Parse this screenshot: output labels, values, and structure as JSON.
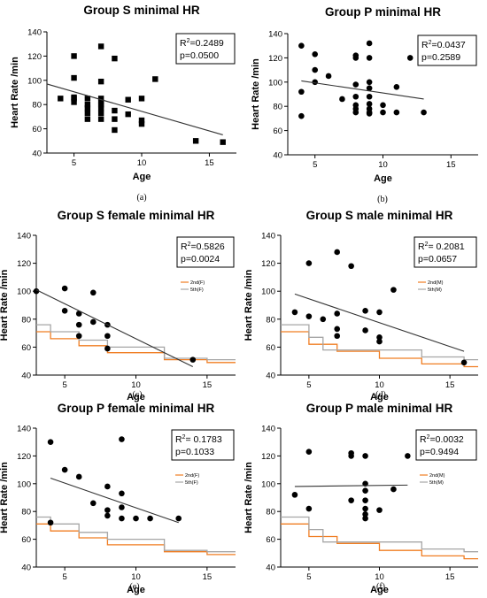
{
  "figure": {
    "colors": {
      "regression": "#333333",
      "points": "#000000",
      "ref_2nd": "#f07d22",
      "ref_5th": "#a6a6a6"
    }
  },
  "chart_data": [
    {
      "type": "scatter",
      "panel_label": "(a)",
      "title": "Group S minimal HR",
      "xlabel": "Age",
      "ylabel": "Heart Rate /min",
      "xlim": [
        3,
        17
      ],
      "ylim": [
        40,
        140
      ],
      "xticks": [
        5,
        10,
        15
      ],
      "yticks": [
        40,
        60,
        80,
        100,
        120,
        140
      ],
      "marker": "square",
      "stats": {
        "r2_label": "R",
        "r2_sup": "2",
        "r2_value": "=0.2489",
        "p_text": "p=0.0500"
      },
      "points": [
        {
          "x": 4,
          "y": 85
        },
        {
          "x": 5,
          "y": 120
        },
        {
          "x": 5,
          "y": 102
        },
        {
          "x": 5,
          "y": 86
        },
        {
          "x": 5,
          "y": 85
        },
        {
          "x": 5,
          "y": 82
        },
        {
          "x": 6,
          "y": 85
        },
        {
          "x": 6,
          "y": 80
        },
        {
          "x": 6,
          "y": 77
        },
        {
          "x": 6,
          "y": 73
        },
        {
          "x": 6,
          "y": 68
        },
        {
          "x": 7,
          "y": 128
        },
        {
          "x": 7,
          "y": 99
        },
        {
          "x": 7,
          "y": 85
        },
        {
          "x": 7,
          "y": 82
        },
        {
          "x": 7,
          "y": 80
        },
        {
          "x": 7,
          "y": 77
        },
        {
          "x": 7,
          "y": 73
        },
        {
          "x": 7,
          "y": 68
        },
        {
          "x": 8,
          "y": 118
        },
        {
          "x": 8,
          "y": 75
        },
        {
          "x": 8,
          "y": 68
        },
        {
          "x": 8,
          "y": 59
        },
        {
          "x": 9,
          "y": 84
        },
        {
          "x": 9,
          "y": 72
        },
        {
          "x": 10,
          "y": 85
        },
        {
          "x": 10,
          "y": 67
        },
        {
          "x": 10,
          "y": 64
        },
        {
          "x": 11,
          "y": 101
        },
        {
          "x": 14,
          "y": 50
        },
        {
          "x": 16,
          "y": 49
        }
      ],
      "regression": {
        "x": [
          3,
          16
        ],
        "y": [
          97,
          55
        ]
      }
    },
    {
      "type": "scatter",
      "panel_label": "(b)",
      "title": "Group P minimal HR",
      "xlabel": "Age",
      "ylabel": "Heart Rate /min",
      "xlim": [
        3,
        17
      ],
      "ylim": [
        40,
        140
      ],
      "xticks": [
        5,
        10,
        15
      ],
      "yticks": [
        40,
        60,
        80,
        100,
        120,
        140
      ],
      "marker": "circle",
      "stats": {
        "r2_label": "R",
        "r2_sup": "2",
        "r2_value": "=0.0437",
        "p_text": "p=0.2589"
      },
      "points": [
        {
          "x": 4,
          "y": 130
        },
        {
          "x": 4,
          "y": 92
        },
        {
          "x": 4,
          "y": 72
        },
        {
          "x": 5,
          "y": 123
        },
        {
          "x": 5,
          "y": 110
        },
        {
          "x": 5,
          "y": 100
        },
        {
          "x": 6,
          "y": 105
        },
        {
          "x": 7,
          "y": 86
        },
        {
          "x": 8,
          "y": 122
        },
        {
          "x": 8,
          "y": 120
        },
        {
          "x": 8,
          "y": 98
        },
        {
          "x": 8,
          "y": 88
        },
        {
          "x": 8,
          "y": 81
        },
        {
          "x": 8,
          "y": 78
        },
        {
          "x": 8,
          "y": 75
        },
        {
          "x": 9,
          "y": 132
        },
        {
          "x": 9,
          "y": 120
        },
        {
          "x": 9,
          "y": 100
        },
        {
          "x": 9,
          "y": 95
        },
        {
          "x": 9,
          "y": 88
        },
        {
          "x": 9,
          "y": 82
        },
        {
          "x": 9,
          "y": 78
        },
        {
          "x": 9,
          "y": 75
        },
        {
          "x": 9,
          "y": 74
        },
        {
          "x": 10,
          "y": 81
        },
        {
          "x": 10,
          "y": 75
        },
        {
          "x": 11,
          "y": 96
        },
        {
          "x": 11,
          "y": 75
        },
        {
          "x": 12,
          "y": 120
        },
        {
          "x": 13,
          "y": 75
        }
      ],
      "regression": {
        "x": [
          4,
          13
        ],
        "y": [
          101,
          86
        ]
      }
    },
    {
      "type": "scatter",
      "panel_label": "(c)",
      "title": "Group S female minimal HR",
      "xlabel": "Age",
      "ylabel": "Heart Rate /min",
      "xlim": [
        3,
        17
      ],
      "ylim": [
        40,
        140
      ],
      "xticks": [
        5,
        10,
        15
      ],
      "yticks": [
        40,
        60,
        80,
        100,
        120,
        140
      ],
      "marker": "circle",
      "stats": {
        "r2_label": "R",
        "r2_sup": "2",
        "r2_value": "=0.5826",
        "p_text": "p=0.0024"
      },
      "points": [
        {
          "x": 3,
          "y": 100
        },
        {
          "x": 5,
          "y": 102
        },
        {
          "x": 5,
          "y": 86
        },
        {
          "x": 6,
          "y": 84
        },
        {
          "x": 6,
          "y": 76
        },
        {
          "x": 6,
          "y": 68
        },
        {
          "x": 7,
          "y": 99
        },
        {
          "x": 7,
          "y": 78
        },
        {
          "x": 8,
          "y": 76
        },
        {
          "x": 8,
          "y": 68
        },
        {
          "x": 8,
          "y": 59
        },
        {
          "x": 14,
          "y": 51
        }
      ],
      "regression": {
        "x": [
          3,
          14
        ],
        "y": [
          101,
          46
        ]
      },
      "reference_lines": [
        {
          "name": "2nd(F)",
          "color_key": "ref_2nd",
          "x": [
            3,
            4,
            4,
            6,
            6,
            8,
            8,
            12,
            12,
            15,
            15,
            17
          ],
          "y": [
            71,
            71,
            66,
            66,
            61,
            61,
            56,
            56,
            51,
            51,
            49,
            49
          ]
        },
        {
          "name": "5th(F)",
          "color_key": "ref_5th",
          "x": [
            3,
            4,
            4,
            6,
            6,
            8,
            8,
            12,
            12,
            15,
            15,
            17
          ],
          "y": [
            76,
            76,
            71,
            71,
            65,
            65,
            60,
            60,
            52,
            52,
            51,
            51
          ]
        }
      ]
    },
    {
      "type": "scatter",
      "panel_label": "(d)",
      "title": "Group S male minimal HR",
      "xlabel": "Age",
      "ylabel": "Heart Rate /min",
      "xlim": [
        3,
        17
      ],
      "ylim": [
        40,
        140
      ],
      "xticks": [
        5,
        10,
        15
      ],
      "yticks": [
        40,
        60,
        80,
        100,
        120,
        140
      ],
      "marker": "circle",
      "stats": {
        "r2_label": "R",
        "r2_sup": "2",
        "r2_value": "= 0.2081",
        "p_text": "p=0.0657"
      },
      "points": [
        {
          "x": 4,
          "y": 85
        },
        {
          "x": 5,
          "y": 120
        },
        {
          "x": 5,
          "y": 82
        },
        {
          "x": 6,
          "y": 80
        },
        {
          "x": 7,
          "y": 128
        },
        {
          "x": 7,
          "y": 84
        },
        {
          "x": 7,
          "y": 73
        },
        {
          "x": 7,
          "y": 68
        },
        {
          "x": 8,
          "y": 118
        },
        {
          "x": 9,
          "y": 86
        },
        {
          "x": 9,
          "y": 72
        },
        {
          "x": 10,
          "y": 85
        },
        {
          "x": 10,
          "y": 67
        },
        {
          "x": 10,
          "y": 64
        },
        {
          "x": 11,
          "y": 101
        },
        {
          "x": 16,
          "y": 49
        }
      ],
      "regression": {
        "x": [
          4,
          16
        ],
        "y": [
          98,
          57
        ]
      },
      "reference_lines": [
        {
          "name": "2nd(M)",
          "color_key": "ref_2nd",
          "x": [
            3,
            4,
            4,
            5,
            5,
            7,
            7,
            10,
            10,
            13,
            13,
            16,
            16,
            17
          ],
          "y": [
            71,
            71,
            71,
            71,
            62,
            62,
            57,
            57,
            52,
            52,
            48,
            48,
            46,
            46
          ]
        },
        {
          "name": "5th(M)",
          "color_key": "ref_5th",
          "x": [
            3,
            4,
            4,
            5,
            5,
            6,
            6,
            10,
            10,
            13,
            13,
            16,
            16,
            17
          ],
          "y": [
            76,
            76,
            76,
            76,
            67,
            67,
            58,
            58,
            58,
            58,
            53,
            53,
            51,
            51
          ]
        }
      ]
    },
    {
      "type": "scatter",
      "panel_label": "(e)",
      "title": "Group P female minimal HR",
      "xlabel": "Age",
      "ylabel": "Heart Rate /min",
      "xlim": [
        3,
        17
      ],
      "ylim": [
        40,
        140
      ],
      "xticks": [
        5,
        10,
        15
      ],
      "yticks": [
        40,
        60,
        80,
        100,
        120,
        140
      ],
      "marker": "circle",
      "stats": {
        "r2_label": "R",
        "r2_sup": "2",
        "r2_value": "= 0.1783",
        "p_text": "p=0.1033"
      },
      "points": [
        {
          "x": 4,
          "y": 130
        },
        {
          "x": 4,
          "y": 72
        },
        {
          "x": 5,
          "y": 110
        },
        {
          "x": 6,
          "y": 105
        },
        {
          "x": 7,
          "y": 86
        },
        {
          "x": 8,
          "y": 98
        },
        {
          "x": 8,
          "y": 81
        },
        {
          "x": 8,
          "y": 77
        },
        {
          "x": 9,
          "y": 132
        },
        {
          "x": 9,
          "y": 93
        },
        {
          "x": 9,
          "y": 83
        },
        {
          "x": 9,
          "y": 75
        },
        {
          "x": 10,
          "y": 75
        },
        {
          "x": 11,
          "y": 75
        },
        {
          "x": 13,
          "y": 75
        }
      ],
      "regression": {
        "x": [
          4,
          13
        ],
        "y": [
          104,
          72
        ]
      },
      "reference_lines": [
        {
          "name": "2nd(F)",
          "color_key": "ref_2nd",
          "x": [
            3,
            4,
            4,
            6,
            6,
            8,
            8,
            12,
            12,
            15,
            15,
            17
          ],
          "y": [
            71,
            71,
            66,
            66,
            61,
            61,
            56,
            56,
            51,
            51,
            49,
            49
          ]
        },
        {
          "name": "5th(F)",
          "color_key": "ref_5th",
          "x": [
            3,
            4,
            4,
            6,
            6,
            8,
            8,
            12,
            12,
            15,
            15,
            17
          ],
          "y": [
            76,
            76,
            71,
            71,
            65,
            65,
            60,
            60,
            52,
            52,
            51,
            51
          ]
        }
      ]
    },
    {
      "type": "scatter",
      "panel_label": "(f)",
      "title": "Group P male minimal HR",
      "xlabel": "Age",
      "ylabel": "Heart Rate /min",
      "xlim": [
        3,
        17
      ],
      "ylim": [
        40,
        140
      ],
      "xticks": [
        5,
        10,
        15
      ],
      "yticks": [
        40,
        60,
        80,
        100,
        120,
        140
      ],
      "marker": "circle",
      "stats": {
        "r2_label": "R",
        "r2_sup": "2",
        "r2_value": "=0.0032",
        "p_text": "p=0.9494"
      },
      "points": [
        {
          "x": 4,
          "y": 92
        },
        {
          "x": 5,
          "y": 123
        },
        {
          "x": 5,
          "y": 82
        },
        {
          "x": 8,
          "y": 122
        },
        {
          "x": 8,
          "y": 120
        },
        {
          "x": 8,
          "y": 88
        },
        {
          "x": 9,
          "y": 120
        },
        {
          "x": 9,
          "y": 100
        },
        {
          "x": 9,
          "y": 95
        },
        {
          "x": 9,
          "y": 88
        },
        {
          "x": 9,
          "y": 82
        },
        {
          "x": 9,
          "y": 78
        },
        {
          "x": 9,
          "y": 75
        },
        {
          "x": 10,
          "y": 81
        },
        {
          "x": 11,
          "y": 96
        },
        {
          "x": 12,
          "y": 120
        }
      ],
      "regression": {
        "x": [
          4,
          12
        ],
        "y": [
          98,
          99
        ]
      },
      "reference_lines": [
        {
          "name": "2nd(M)",
          "color_key": "ref_2nd",
          "x": [
            3,
            4,
            4,
            5,
            5,
            7,
            7,
            10,
            10,
            13,
            13,
            16,
            16,
            17
          ],
          "y": [
            71,
            71,
            71,
            71,
            62,
            62,
            57,
            57,
            52,
            52,
            48,
            48,
            46,
            46
          ]
        },
        {
          "name": "5th(M)",
          "color_key": "ref_5th",
          "x": [
            3,
            4,
            4,
            5,
            5,
            6,
            6,
            10,
            10,
            13,
            13,
            16,
            16,
            17
          ],
          "y": [
            76,
            76,
            76,
            76,
            67,
            67,
            58,
            58,
            58,
            58,
            53,
            53,
            51,
            51
          ]
        }
      ]
    }
  ]
}
